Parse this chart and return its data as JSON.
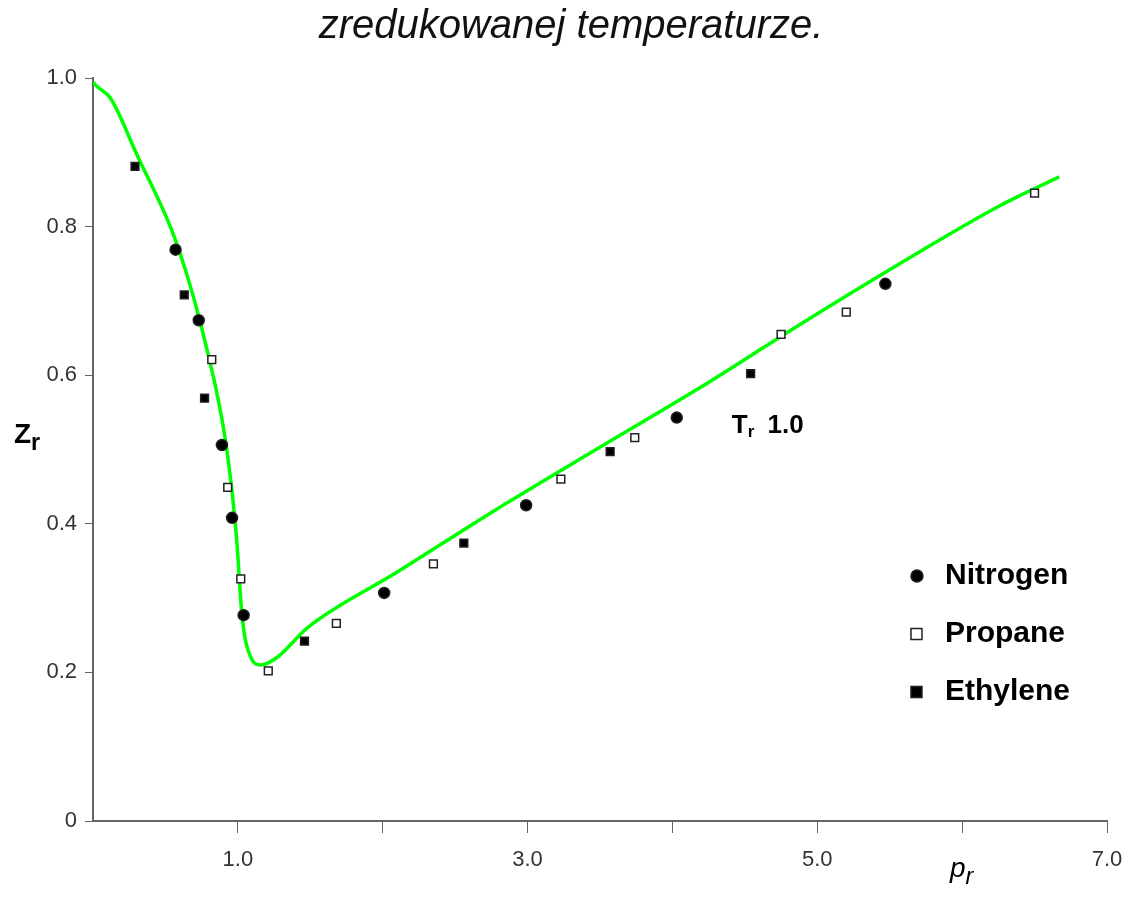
{
  "chart_data": {
    "type": "scatter",
    "title": "zredukowanej temperaturze.",
    "xlabel": "p$_{r}$",
    "ylabel": "Z$_{r}$",
    "annotations": [
      "T$_{r}$ 1.0"
    ],
    "xlim": [
      0,
      7
    ],
    "ylim": [
      0,
      1
    ],
    "xticks": [
      {
        "value": 1,
        "label": "1.0"
      },
      {
        "value": 2,
        "label": null
      },
      {
        "value": 3,
        "label": "3.0"
      },
      {
        "value": 4,
        "label": null
      },
      {
        "value": 5,
        "label": "5.0"
      },
      {
        "value": 6,
        "label": null
      },
      {
        "value": 7,
        "label": "7.0"
      }
    ],
    "yticks": [
      {
        "value": 0,
        "label": "0"
      },
      {
        "value": 0.2,
        "label": "0.2"
      },
      {
        "value": 0.4,
        "label": "0.4"
      },
      {
        "value": 0.6,
        "label": "0.6"
      },
      {
        "value": 0.8,
        "label": "0.8"
      },
      {
        "value": 1,
        "label": "1.0"
      }
    ],
    "grid": false,
    "legend": "bottom right",
    "series": [
      {
        "type": "line",
        "color": "#00ff00",
        "marker": "none",
        "line_style": "solid",
        "x": [
          0,
          0.02,
          0.12,
          0.3,
          0.58,
          0.78,
          0.92,
          0.99,
          1.03,
          1.09,
          1.16,
          1.27,
          1.48,
          2.1,
          2.79,
          3.49,
          4.18,
          4.87,
          5.56,
          6.26,
          6.67
        ],
        "values": [
          0.995,
          0.99,
          0.973,
          0.898,
          0.776,
          0.64,
          0.505,
          0.383,
          0.274,
          0.22,
          0.21,
          0.22,
          0.26,
          0.335,
          0.42,
          0.502,
          0.582,
          0.667,
          0.749,
          0.828,
          0.867
        ]
      },
      {
        "name": "Nitrogen",
        "color": "#000000",
        "marker": "circle",
        "x": [
          0.57,
          0.73,
          0.89,
          0.96,
          1.04,
          2.01,
          2.99,
          4.03,
          5.47
        ],
        "values": [
          0.769,
          0.674,
          0.506,
          0.408,
          0.277,
          0.307,
          0.425,
          0.543,
          0.723
        ]
      },
      {
        "name": "Propane",
        "color": "#ffffff",
        "marker": "square",
        "x": [
          0.82,
          0.93,
          1.02,
          1.21,
          1.68,
          2.35,
          3.23,
          3.74,
          4.75,
          5.2,
          6.5
        ],
        "values": [
          0.621,
          0.449,
          0.326,
          0.202,
          0.266,
          0.346,
          0.46,
          0.516,
          0.655,
          0.685,
          0.845
        ]
      },
      {
        "name": "Ethylene",
        "color": "#000000",
        "marker": "square",
        "x": [
          0.29,
          0.63,
          0.77,
          1.46,
          2.56,
          3.57,
          4.54
        ],
        "values": [
          0.881,
          0.708,
          0.569,
          0.242,
          0.374,
          0.497,
          0.602
        ]
      }
    ]
  }
}
